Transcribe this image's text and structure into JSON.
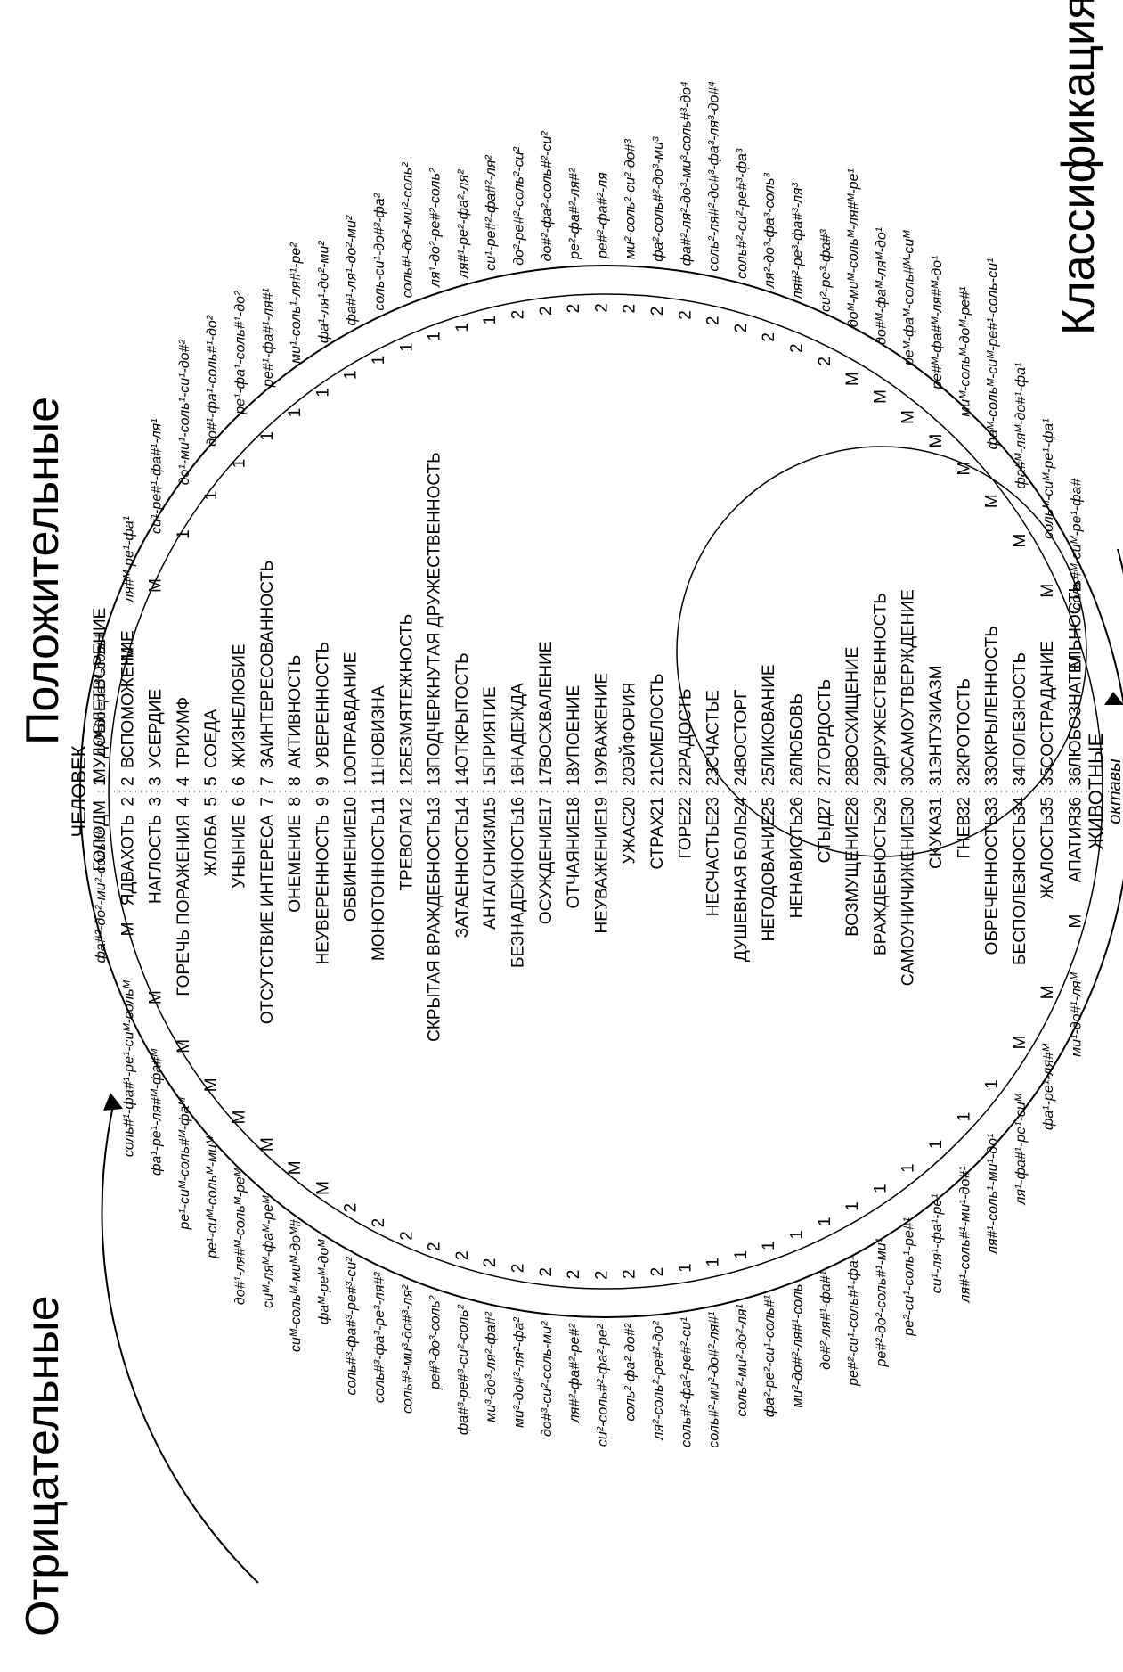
{
  "headings": {
    "negative": "Отрицательные",
    "positive": "Положительные",
    "classification": "Классификация эмоций"
  },
  "labels": {
    "human": "ЧЕЛОВЕК",
    "animals": "ЖИВОТНЫЕ",
    "octaves": "октавы"
  },
  "negative_emotions": [
    {
      "num": "",
      "name": "ГОЛОД",
      "level": "М",
      "notes": "фа#²-до²-ми²-соль#ᴹ"
    },
    {
      "num": "2",
      "name": "ЯДВАХОТЬ",
      "level": "М",
      "notes": "соль#¹-фа#¹-ре¹-сиᴹ-сольᴹ"
    },
    {
      "num": "3",
      "name": "НАГЛОСТЬ",
      "level": "М",
      "notes": "фа¹-ре¹-ля#ᴹ-фа#ᴹ"
    },
    {
      "num": "4",
      "name": "ГОРЕЧЬ ПОРАЖЕНИЯ",
      "level": "М",
      "notes": "ре¹-сиᴹ-соль#ᴹ-фаᴹ"
    },
    {
      "num": "5",
      "name": "ЖЛОБА",
      "level": "М",
      "notes": "ре¹-сиᴹ-сольᴹ-миᴹ"
    },
    {
      "num": "6",
      "name": "УНЫНИЕ",
      "level": "М",
      "notes": "до#¹-ля#ᴹ-сольᴹ-реᴹ"
    },
    {
      "num": "7",
      "name": "ОТСУТСТВИЕ ИНТЕРЕСА",
      "level": "М",
      "notes": "сиᴹ-ляᴹ-фаᴹ-реᴹ"
    },
    {
      "num": "8",
      "name": "ОНЕМЕНИЕ",
      "level": "М",
      "notes": "сиᴹ-сольᴹ-миᴹ-доᴹ#"
    },
    {
      "num": "9",
      "name": "НЕУВЕРЕННОСТЬ",
      "level": "М",
      "notes": "фаᴹ-реᴹ-доᴹ"
    },
    {
      "num": "10",
      "name": "ОБВИНЕНИЕ",
      "level": "2",
      "notes": "соль#³-фа#³-ре#³-си²"
    },
    {
      "num": "11",
      "name": "МОНОТОННОСТЬ",
      "level": "2",
      "notes": "соль#³-фа³-ре³-ля#²"
    },
    {
      "num": "12",
      "name": "ТРЕВОГА",
      "level": "2",
      "notes": "соль#³-ми³-до#³-ля²"
    },
    {
      "num": "13",
      "name": "СКРЫТАЯ ВРАЖДЕБНОСТЬ",
      "level": "2",
      "notes": "ре#³-до³-соль²"
    },
    {
      "num": "14",
      "name": "ЗАТАЕННОСТЬ",
      "level": "2",
      "notes": "фа#³-ре#³-си²-соль²"
    },
    {
      "num": "15",
      "name": "АНТАГОНИЗМ",
      "level": "2",
      "notes": "ми³-до³-ля²-фа#²"
    },
    {
      "num": "16",
      "name": "БЕЗНАДЕЖНОСТЬ",
      "level": "2",
      "notes": "ми³-до#³-ля²-фа²"
    },
    {
      "num": "17",
      "name": "ОСУЖДЕНИЕ",
      "level": "2",
      "notes": "до#³-си²-соль-ми²"
    },
    {
      "num": "18",
      "name": "ОТЧАЯНИЕ",
      "level": "2",
      "notes": "ля#²-фа#²-ре#²"
    },
    {
      "num": "19",
      "name": "НЕУВАЖЕНИЕ",
      "level": "2",
      "notes": "си²-соль#²-фа²-ре²"
    },
    {
      "num": "20",
      "name": "УЖАС",
      "level": "2",
      "notes": "соль²-фа²-до#²"
    },
    {
      "num": "21",
      "name": "СТРАХ",
      "level": "2",
      "notes": "ля²-соль²-ре#²-до²"
    },
    {
      "num": "22",
      "name": "ГОРЕ",
      "level": "1",
      "notes": "соль#²-фа²-ре#²-си¹"
    },
    {
      "num": "23",
      "name": "НЕСЧАСТЬЕ",
      "level": "1",
      "notes": "соль#²-ми²-до#²-ля#¹"
    },
    {
      "num": "24",
      "name": "ДУШЕВНАЯ БОЛЬ",
      "level": "1",
      "notes": "соль²-ми²-до²-ля¹"
    },
    {
      "num": "25",
      "name": "НЕГОДОВАНИЕ",
      "level": "1",
      "notes": "фа²-ре²-си¹-соль#¹"
    },
    {
      "num": "26",
      "name": "НЕНАВИСТЬ",
      "level": "1",
      "notes": "ми²-до#²-ля#¹-соль"
    },
    {
      "num": "27",
      "name": "СТЫД",
      "level": "1",
      "notes": "до#²-ля#¹-фа#¹"
    },
    {
      "num": "28",
      "name": "ВОЗМУЩЕНИЕ",
      "level": "1",
      "notes": "ре#²-си¹-соль#¹-фа¹"
    },
    {
      "num": "29",
      "name": "ВРАЖДЕБНОСТЬ",
      "level": "1",
      "notes": "ре#²-до²-соль#¹-ми¹"
    },
    {
      "num": "30",
      "name": "САМОУНИЧИЖЕНИЕ",
      "level": "1",
      "notes": "ре²-си¹-соль¹-ре#¹"
    },
    {
      "num": "31",
      "name": "СКУКА",
      "level": "1",
      "notes": "си¹-ля¹-фа¹-ре¹"
    },
    {
      "num": "32",
      "name": "ГНЕВ",
      "level": "1",
      "notes": "ля#¹-соль#¹-ми¹-до#¹"
    },
    {
      "num": "33",
      "name": "ОБРЕЧЕННОСТЬ",
      "level": "1",
      "notes": "ля#¹-соль¹-ми¹-до¹"
    },
    {
      "num": "34",
      "name": "БЕСПОЛЕЗНОСТЬ",
      "level": "М",
      "notes": "ля¹-фа#¹-ре¹-сиᴹ"
    },
    {
      "num": "35",
      "name": "ЖАЛОСТЬ",
      "level": "М",
      "notes": "фа¹-ре¹-ля#ᴹ"
    },
    {
      "num": "36",
      "name": "АПАТИЯ",
      "level": "М",
      "notes": "ми¹-до#¹-ляᴹ"
    }
  ],
  "positive_emotions": [
    {
      "num": "1",
      "name": "УДОВЛЕТВОРЕНИЕ",
      "level": "М",
      "notes": "ляᴹ-до¹-ре#¹-соль¹"
    },
    {
      "num": "2",
      "name": "ВСПОМОЖЕНИЕ",
      "level": "М",
      "notes": "ля#ᴹ-ре¹-фа¹"
    },
    {
      "num": "3",
      "name": "УСЕРДИЕ",
      "level": "М",
      "notes": "си¹-ре#¹-фа#¹-ля¹"
    },
    {
      "num": "4",
      "name": "ТРИУМФ",
      "level": "1",
      "notes": "до¹-ми¹-соль¹-си¹-до#²"
    },
    {
      "num": "5",
      "name": "СОЕДА",
      "level": "1",
      "notes": "до#¹-фа¹-соль#¹-до²"
    },
    {
      "num": "6",
      "name": "ЖИЗНЕЛЮБИЕ",
      "level": "1",
      "notes": "ре¹-фа¹-соль#¹-до²"
    },
    {
      "num": "7",
      "name": "ЗАИНТЕРЕСОВАННОСТЬ",
      "level": "1",
      "notes": "ре#¹-фа#¹-ля#¹"
    },
    {
      "num": "8",
      "name": "АКТИВНОСТЬ",
      "level": "1",
      "notes": "ми¹-соль¹-ля#¹-ре²"
    },
    {
      "num": "9",
      "name": "УВЕРЕННОСТЬ",
      "level": "1",
      "notes": "фа¹-ля¹-до²-ми²"
    },
    {
      "num": "10",
      "name": "ОПРАВДАНИЕ",
      "level": "1",
      "notes": "фа#¹-ля¹-до²-ми²"
    },
    {
      "num": "11",
      "name": "НОВИЗНА",
      "level": "1",
      "notes": "соль-си¹-до#²-фа²"
    },
    {
      "num": "12",
      "name": "БЕЗМЯТЕЖНОСТЬ",
      "level": "1",
      "notes": "соль#¹-до²-ми²-соль²"
    },
    {
      "num": "13",
      "name": "ПОДЧЕРКНУТАЯ ДРУЖЕСТВЕННОСТЬ",
      "level": "1",
      "notes": "ля¹-до²-ре#²-соль²"
    },
    {
      "num": "14",
      "name": "ОТКРЫТОСТЬ",
      "level": "1",
      "notes": "ля#¹-ре²-фа²-ля²"
    },
    {
      "num": "15",
      "name": "ПРИЯТИЕ",
      "level": "1",
      "notes": "си¹-ре#²-фа#²-ля²"
    },
    {
      "num": "16",
      "name": "НАДЕЖДА",
      "level": "2",
      "notes": "до²-ре#²-соль²-си²"
    },
    {
      "num": "17",
      "name": "ВОСХВАЛЕНИЕ",
      "level": "2",
      "notes": "до#²-фа²-соль#²-си²"
    },
    {
      "num": "18",
      "name": "УПОЕНИЕ",
      "level": "2",
      "notes": "ре²-фа#²-ля#²"
    },
    {
      "num": "19",
      "name": "УВАЖЕНИЕ",
      "level": "2",
      "notes": "ре#²-фа#²-ля"
    },
    {
      "num": "20",
      "name": "ЭЙФОРИЯ",
      "level": "2",
      "notes": "ми²-соль²-си²-до#³"
    },
    {
      "num": "21",
      "name": "СМЕЛОСТЬ",
      "level": "2",
      "notes": "фа²-соль#²-до³-ми³"
    },
    {
      "num": "22",
      "name": "РАДОСТЬ",
      "level": "2",
      "notes": "фа#²-ля²-до³-ми³-соль#³-до⁴"
    },
    {
      "num": "23",
      "name": "СЧАСТЬЕ",
      "level": "2",
      "notes": "соль²-ля#²-до#³-фа³-ля³-до#⁴"
    },
    {
      "num": "24",
      "name": "ВОСТОРГ",
      "level": "2",
      "notes": "соль#²-си²-ре#³-фа³"
    },
    {
      "num": "25",
      "name": "ЛИКОВАНИЕ",
      "level": "2",
      "notes": "ля²-до³-фа³-соль³"
    },
    {
      "num": "26",
      "name": "ЛЮБОВЬ",
      "level": "2",
      "notes": "ля#²-ре³-фа#³-ля³"
    },
    {
      "num": "27",
      "name": "ГОРДОСТЬ",
      "level": "2",
      "notes": "си²-ре³-фа#³"
    },
    {
      "num": "28",
      "name": "ВОСХИЩЕНИЕ",
      "level": "М",
      "notes": "доᴹ-миᴹ-сольᴹ-ля#ᴹ-ре¹"
    },
    {
      "num": "29",
      "name": "ДРУЖЕСТВЕННОСТЬ",
      "level": "М",
      "notes": "до#ᴹ-фаᴹ-ляᴹ-до¹"
    },
    {
      "num": "30",
      "name": "САМОУТВЕРЖДЕНИЕ",
      "level": "М",
      "notes": "реᴹ-фаᴹ-соль#ᴹ-сиᴹ"
    },
    {
      "num": "31",
      "name": "ЭНТУЗИАЗМ",
      "level": "М",
      "notes": "ре#ᴹ-фа#ᴹ-ля#ᴹ-до¹"
    },
    {
      "num": "32",
      "name": "КРОТОСТЬ",
      "level": "М",
      "notes": "миᴹ-сольᴹ-доᴹ-ре#¹"
    },
    {
      "num": "33",
      "name": "ОКРЫЛЕННОСТЬ",
      "level": "М",
      "notes": "фаᴹ-сольᴹ-сиᴹ-ре#¹-соль-си¹"
    },
    {
      "num": "34",
      "name": "ПОЛЕЗНОСТЬ",
      "level": "М",
      "notes": "фа#ᴹ-ляᴹ-до#¹-фа¹"
    },
    {
      "num": "35",
      "name": "СОСТРАДАНИЕ",
      "level": "М",
      "notes": "сольᴹ-сиᴹ-ре¹-фа¹"
    },
    {
      "num": "36",
      "name": "ЛЮБОЗНАТЕЛЬНОСТЬ",
      "level": "М",
      "notes": "соль#ᴹ-сиᴹ-ре¹-фа#"
    }
  ]
}
